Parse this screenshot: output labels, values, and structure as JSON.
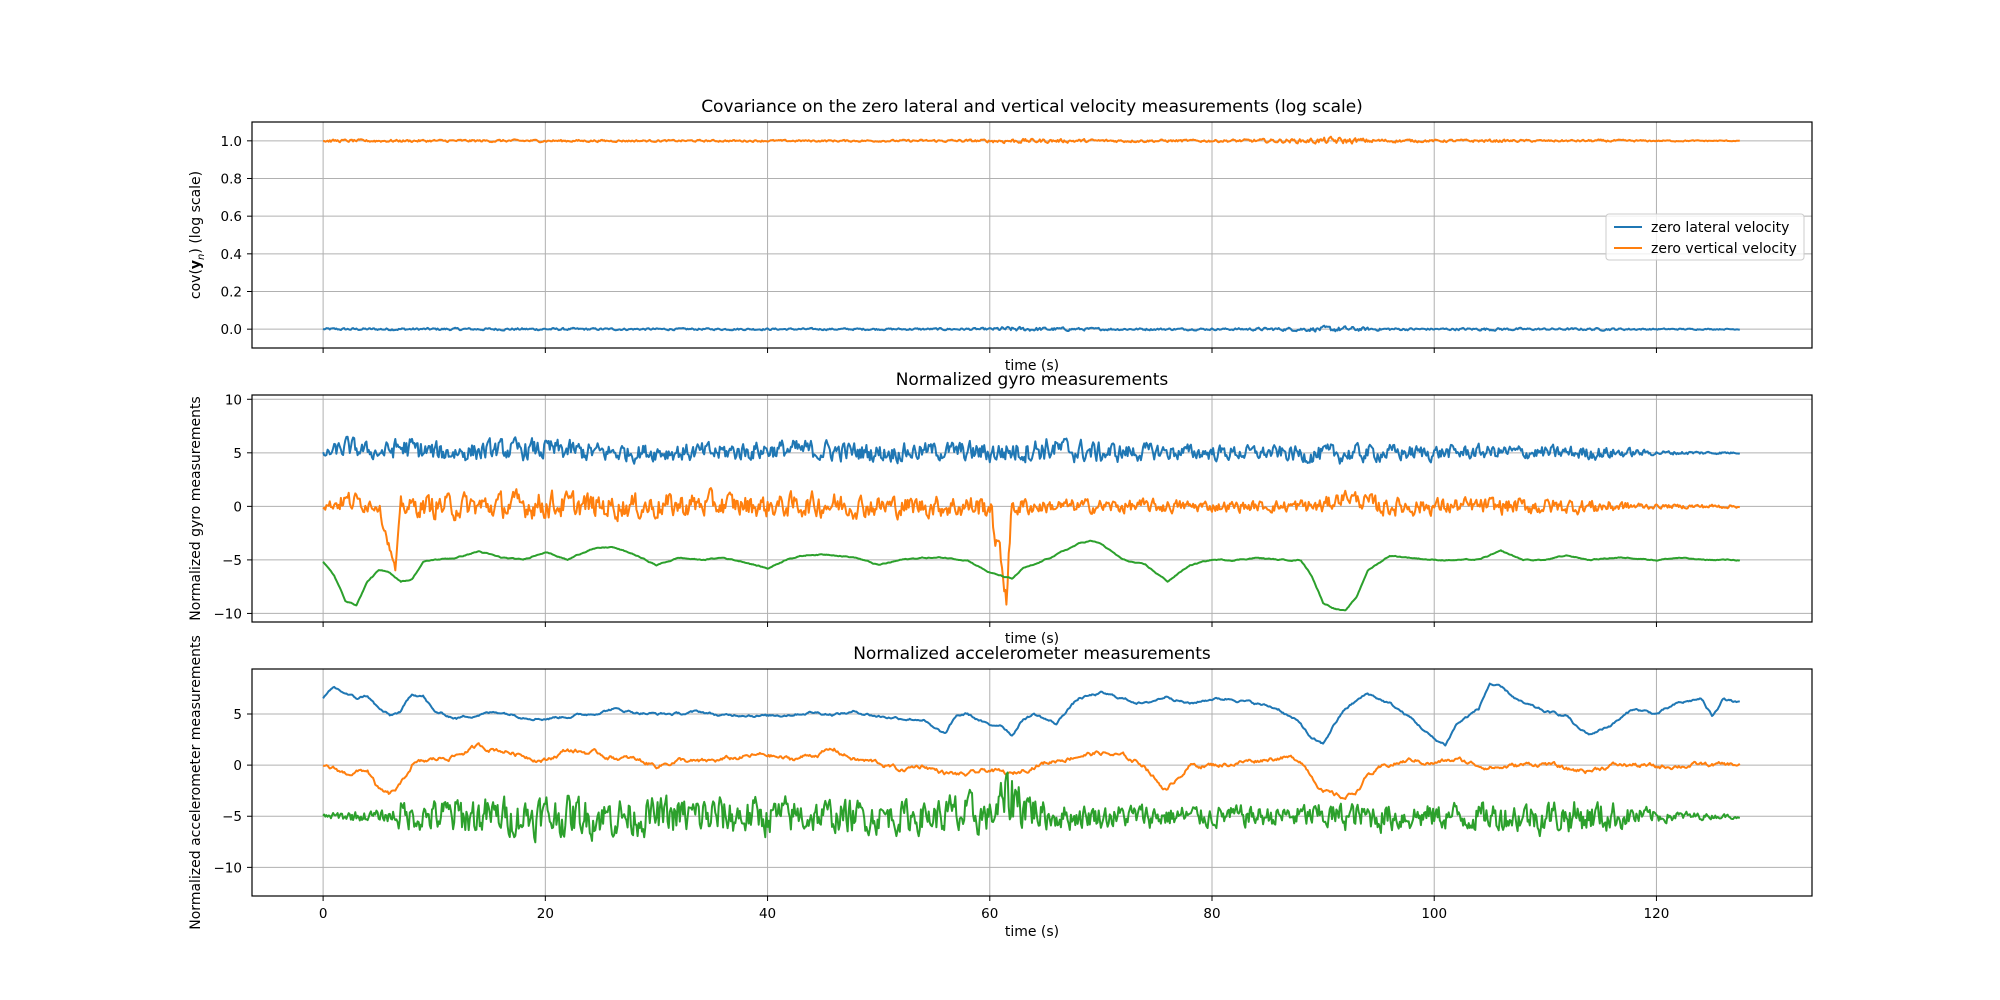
{
  "chart_data": [
    {
      "type": "line",
      "title": "Covariance on the zero lateral and vertical velocity measurements (log scale)",
      "xlabel": "time (s)",
      "ylabel_parts": [
        "cov(",
        "y",
        "n",
        ") (log scale)"
      ],
      "xlim": [
        -6.4,
        134
      ],
      "ylim": [
        -0.1,
        1.1
      ],
      "xticks": [],
      "yticks": [
        0.0,
        0.2,
        0.4,
        0.6,
        0.8,
        1.0
      ],
      "ytick_labels": [
        "0.0",
        "0.2",
        "0.4",
        "0.6",
        "0.8",
        "1.0"
      ],
      "grid": true,
      "legend_placement": "center-right",
      "series": [
        {
          "name": "zero lateral velocity",
          "color": "#1f77b4",
          "noisy_band": true,
          "x": [
            0,
            10,
            20,
            30,
            40,
            50,
            60,
            61,
            70,
            80,
            88,
            91,
            95,
            100,
            105,
            110,
            115,
            120,
            127.5
          ],
          "values": [
            0.0,
            0.0,
            0.0,
            0.0,
            0.0,
            0.0,
            0.0,
            0.0,
            0.0,
            0.0,
            0.0,
            0.0,
            0.0,
            0.0,
            0.0,
            0.0,
            0.0,
            0.0,
            0.0
          ],
          "noise_amplitude": [
            0.01,
            0.01,
            0.01,
            0.008,
            0.008,
            0.008,
            0.01,
            0.02,
            0.01,
            0.008,
            0.015,
            0.025,
            0.012,
            0.008,
            0.012,
            0.008,
            0.01,
            0.006,
            0.004
          ]
        },
        {
          "name": "zero vertical velocity",
          "color": "#ff7f0e",
          "noisy_band": true,
          "x": [
            0,
            10,
            20,
            30,
            40,
            50,
            60,
            61,
            70,
            80,
            88,
            91,
            95,
            100,
            105,
            110,
            115,
            120,
            127.5
          ],
          "values": [
            1.0,
            1.0,
            1.0,
            1.0,
            1.0,
            1.0,
            1.0,
            1.0,
            1.0,
            1.0,
            1.0,
            1.0,
            1.0,
            1.0,
            1.0,
            1.0,
            1.0,
            1.0,
            1.0
          ],
          "noise_amplitude": [
            0.012,
            0.01,
            0.01,
            0.008,
            0.008,
            0.008,
            0.012,
            0.02,
            0.012,
            0.01,
            0.018,
            0.03,
            0.015,
            0.01,
            0.012,
            0.008,
            0.01,
            0.006,
            0.004
          ]
        }
      ]
    },
    {
      "type": "line",
      "title": "Normalized gyro measurements",
      "xlabel": "time (s)",
      "ylabel": "Normalized gyro measurements",
      "xlim": [
        -6.4,
        134
      ],
      "ylim": [
        -10.8,
        10.4
      ],
      "xticks": [],
      "yticks": [
        -10,
        -5,
        0,
        5,
        10
      ],
      "ytick_labels": [
        "−10",
        "−5",
        "0",
        "5",
        "10"
      ],
      "grid": true,
      "series": [
        {
          "color": "#1f77b4",
          "noisy_band": true,
          "x": [
            0,
            2,
            5,
            7,
            10,
            15,
            20,
            25,
            30,
            35,
            40,
            45,
            50,
            55,
            60,
            65,
            70,
            75,
            80,
            85,
            90,
            95,
            100,
            105,
            110,
            115,
            120,
            125,
            127.5
          ],
          "values": [
            4.8,
            5.5,
            5.0,
            5.5,
            5.0,
            5.2,
            5.3,
            5.0,
            5.1,
            5.0,
            5.3,
            5.2,
            5.0,
            5.2,
            5.0,
            5.4,
            5.0,
            5.1,
            5.0,
            5.0,
            4.8,
            5.0,
            5.0,
            5.1,
            5.0,
            5.0,
            5.0,
            5.0,
            5.0
          ],
          "noise_amplitude": [
            0.6,
            1.5,
            1.0,
            1.8,
            1.5,
            1.4,
            1.6,
            1.4,
            1.3,
            1.4,
            1.4,
            1.5,
            1.4,
            1.3,
            1.6,
            1.8,
            1.5,
            1.2,
            1.1,
            1.0,
            1.4,
            1.2,
            1.1,
            1.0,
            1.0,
            1.0,
            0.3,
            0.2,
            0.1
          ]
        },
        {
          "color": "#ff7f0e",
          "noisy_band": true,
          "x": [
            0,
            2,
            5,
            6.5,
            7,
            10,
            15,
            20,
            25,
            30,
            35,
            40,
            45,
            50,
            55,
            60,
            61.5,
            62,
            65,
            70,
            75,
            80,
            85,
            90,
            92,
            95,
            100,
            105,
            110,
            115,
            120,
            125,
            127.5
          ],
          "values": [
            0.0,
            0.5,
            0.2,
            -6.0,
            0.0,
            0.0,
            0.0,
            0.2,
            0.0,
            0.0,
            0.2,
            0.0,
            0.2,
            0.0,
            0.0,
            0.0,
            -8.0,
            0.0,
            0.0,
            0.0,
            0.0,
            0.0,
            0.0,
            0.0,
            1.0,
            0.0,
            0.0,
            0.0,
            0.0,
            0.0,
            0.0,
            0.0,
            0.0
          ],
          "noise_amplitude": [
            0.5,
            1.5,
            1.0,
            0.5,
            1.2,
            1.8,
            1.8,
            2.0,
            1.8,
            1.8,
            1.8,
            1.6,
            1.8,
            1.6,
            1.5,
            1.8,
            2.0,
            1.5,
            1.0,
            1.0,
            1.0,
            0.8,
            0.8,
            1.2,
            1.0,
            1.4,
            1.2,
            1.2,
            1.2,
            1.0,
            0.3,
            0.3,
            0.2
          ]
        },
        {
          "color": "#2ca02c",
          "noisy_band": false,
          "x": [
            0,
            1,
            2,
            3,
            4,
            5,
            6,
            7,
            8,
            9,
            10,
            12,
            14,
            16,
            18,
            20,
            22,
            24,
            26,
            28,
            30,
            32,
            34,
            36,
            38,
            40,
            42,
            44,
            46,
            48,
            50,
            52,
            54,
            56,
            58,
            60,
            61,
            62,
            63,
            64,
            66,
            68,
            69,
            70,
            72,
            74,
            76,
            78,
            80,
            82,
            84,
            86,
            88,
            89,
            90,
            91,
            92,
            93,
            94,
            96,
            98,
            100,
            102,
            104,
            106,
            108,
            110,
            112,
            114,
            116,
            118,
            120,
            122,
            124,
            126,
            127.5
          ],
          "values": [
            -5.2,
            -6.5,
            -8.8,
            -9.2,
            -7.0,
            -6.0,
            -6.2,
            -7.0,
            -6.8,
            -5.2,
            -5.0,
            -4.8,
            -4.2,
            -4.8,
            -5.0,
            -4.2,
            -5.0,
            -4.0,
            -3.8,
            -4.5,
            -5.5,
            -4.8,
            -5.0,
            -4.8,
            -5.2,
            -5.8,
            -4.8,
            -4.5,
            -4.5,
            -4.8,
            -5.5,
            -5.0,
            -4.8,
            -4.8,
            -5.0,
            -6.2,
            -6.5,
            -6.8,
            -5.8,
            -5.5,
            -4.5,
            -3.5,
            -3.2,
            -3.5,
            -5.0,
            -5.5,
            -7.0,
            -5.5,
            -5.0,
            -5.0,
            -4.8,
            -5.0,
            -5.0,
            -6.5,
            -9.0,
            -9.5,
            -9.8,
            -8.5,
            -6.0,
            -4.6,
            -4.8,
            -5.0,
            -5.0,
            -5.0,
            -4.2,
            -5.0,
            -5.0,
            -4.6,
            -5.0,
            -4.8,
            -4.8,
            -5.0,
            -4.8,
            -5.0,
            -5.0,
            -5.0
          ],
          "noise_amplitude": 0.08
        }
      ]
    },
    {
      "type": "line",
      "title": "Normalized accelerometer measurements",
      "xlabel": "time (s)",
      "ylabel": "Normalized accelerometer measurements",
      "xlim": [
        -6.4,
        134
      ],
      "ylim": [
        -12.8,
        9.4
      ],
      "xticks": [
        0,
        20,
        40,
        60,
        80,
        100,
        120
      ],
      "xtick_labels": [
        "0",
        "20",
        "40",
        "60",
        "80",
        "100",
        "120"
      ],
      "yticks": [
        -10,
        -5,
        0,
        5
      ],
      "ytick_labels": [
        "−10",
        "−5",
        "0",
        "5"
      ],
      "grid": true,
      "series": [
        {
          "color": "#1f77b4",
          "noisy_band": false,
          "x": [
            0,
            1,
            2,
            3,
            4,
            5,
            6,
            7,
            8,
            9,
            10,
            12,
            14,
            16,
            18,
            20,
            22,
            24,
            26,
            28,
            30,
            32,
            34,
            36,
            38,
            40,
            42,
            44,
            46,
            48,
            50,
            52,
            54,
            55,
            56,
            57,
            58,
            60,
            61,
            62,
            63,
            64,
            65,
            66,
            67,
            68,
            70,
            72,
            74,
            76,
            78,
            80,
            82,
            84,
            86,
            88,
            89,
            90,
            91,
            92,
            94,
            96,
            98,
            100,
            101,
            102,
            104,
            105,
            106,
            108,
            110,
            112,
            113,
            114,
            116,
            118,
            120,
            122,
            124,
            125,
            126,
            127.5
          ],
          "values": [
            6.5,
            7.5,
            7.0,
            6.5,
            6.8,
            5.5,
            4.8,
            5.2,
            7.0,
            6.8,
            5.2,
            4.6,
            5.0,
            5.2,
            4.8,
            4.6,
            4.8,
            5.0,
            5.5,
            5.2,
            5.0,
            5.0,
            5.2,
            4.8,
            5.0,
            4.8,
            5.0,
            5.2,
            5.0,
            5.2,
            4.8,
            4.6,
            4.5,
            3.5,
            3.0,
            4.8,
            5.0,
            3.8,
            4.0,
            3.0,
            4.5,
            5.0,
            4.5,
            4.0,
            5.5,
            6.5,
            7.0,
            6.5,
            6.0,
            6.8,
            6.0,
            6.5,
            6.5,
            6.0,
            5.5,
            4.0,
            2.5,
            2.0,
            4.0,
            5.5,
            7.0,
            6.0,
            4.5,
            2.5,
            2.0,
            4.0,
            5.5,
            8.0,
            7.5,
            6.0,
            5.2,
            4.8,
            3.5,
            3.0,
            4.0,
            5.5,
            5.0,
            6.0,
            6.5,
            4.8,
            6.5,
            6.0
          ],
          "noise_amplitude": 0.2
        },
        {
          "color": "#ff7f0e",
          "noisy_band": false,
          "x": [
            0,
            2,
            4,
            5,
            6,
            7,
            8,
            10,
            12,
            14,
            16,
            18,
            20,
            22,
            24,
            26,
            28,
            30,
            32,
            34,
            36,
            38,
            40,
            42,
            44,
            46,
            48,
            50,
            52,
            54,
            56,
            58,
            60,
            62,
            64,
            66,
            68,
            70,
            72,
            74,
            75,
            76,
            77,
            78,
            80,
            82,
            84,
            86,
            88,
            89,
            90,
            91,
            92,
            93,
            94,
            96,
            98,
            100,
            102,
            104,
            106,
            108,
            110,
            112,
            114,
            116,
            118,
            120,
            122,
            124,
            126,
            127.5
          ],
          "values": [
            0.0,
            -0.8,
            -0.5,
            -2.5,
            -3.0,
            -2.0,
            0.0,
            0.5,
            1.0,
            1.8,
            1.5,
            1.0,
            0.5,
            1.5,
            1.2,
            0.8,
            0.5,
            0.0,
            0.5,
            0.2,
            0.5,
            0.8,
            1.0,
            0.5,
            1.0,
            1.5,
            0.5,
            0.2,
            -0.5,
            0.0,
            -0.8,
            -1.0,
            -0.5,
            -1.0,
            0.0,
            0.5,
            1.0,
            1.2,
            0.8,
            0.0,
            -1.5,
            -2.5,
            -1.0,
            0.0,
            0.0,
            0.2,
            0.5,
            0.8,
            0.5,
            -1.0,
            -2.5,
            -3.0,
            -3.2,
            -2.5,
            -1.0,
            0.0,
            0.5,
            0.2,
            0.5,
            0.0,
            -0.2,
            0.0,
            0.2,
            -0.5,
            -0.5,
            0.0,
            0.0,
            -0.2,
            0.0,
            0.0,
            0.0,
            0.0
          ],
          "noise_amplitude": 0.35
        },
        {
          "color": "#2ca02c",
          "noisy_band": true,
          "x": [
            0,
            2,
            4,
            6,
            7,
            8,
            10,
            12,
            14,
            16,
            18,
            20,
            25,
            30,
            35,
            40,
            45,
            50,
            55,
            57,
            60,
            62,
            65,
            70,
            75,
            80,
            85,
            90,
            95,
            100,
            105,
            110,
            115,
            120,
            125,
            127.5
          ],
          "values": [
            -5.0,
            -5.0,
            -5.0,
            -5.0,
            -4.8,
            -5.0,
            -5.0,
            -5.0,
            -5.0,
            -5.0,
            -5.0,
            -5.0,
            -5.0,
            -5.0,
            -5.0,
            -5.0,
            -5.0,
            -5.0,
            -5.0,
            -5.0,
            -5.0,
            -3.0,
            -5.0,
            -5.0,
            -5.0,
            -5.0,
            -5.0,
            -5.0,
            -5.0,
            -5.0,
            -5.0,
            -5.0,
            -5.0,
            -5.0,
            -5.0,
            -5.0
          ],
          "noise_amplitude": [
            0.3,
            0.8,
            0.8,
            1.0,
            2.5,
            2.0,
            2.5,
            3.2,
            3.0,
            2.8,
            3.0,
            3.2,
            3.0,
            2.8,
            3.2,
            2.8,
            2.5,
            2.5,
            2.5,
            3.5,
            2.5,
            5.0,
            2.0,
            1.8,
            1.8,
            1.6,
            1.6,
            2.0,
            2.2,
            2.0,
            2.2,
            2.5,
            2.5,
            1.0,
            0.4,
            0.3
          ]
        }
      ]
    }
  ]
}
